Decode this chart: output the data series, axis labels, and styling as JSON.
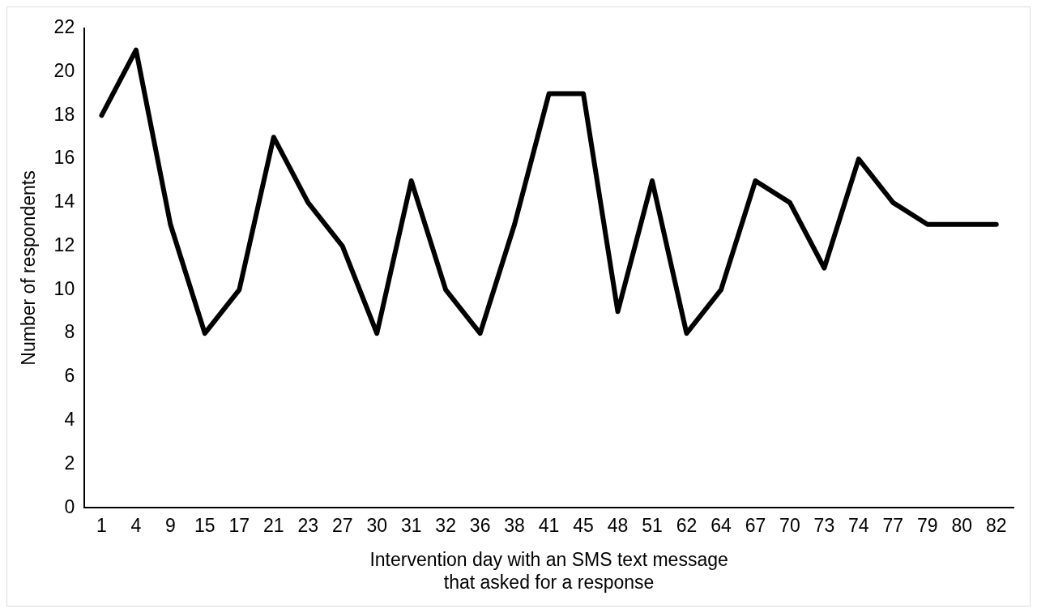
{
  "chart_data": {
    "type": "line",
    "xlabel": "Intervention day with an SMS text message\nthat asked for a response",
    "ylabel": "Number of respondents",
    "categories": [
      "1",
      "4",
      "9",
      "15",
      "17",
      "21",
      "23",
      "27",
      "30",
      "31",
      "32",
      "36",
      "38",
      "41",
      "45",
      "48",
      "51",
      "62",
      "64",
      "67",
      "70",
      "73",
      "74",
      "77",
      "79",
      "80",
      "82"
    ],
    "series": [
      {
        "color": "#000000",
        "values": [
          18,
          21,
          13,
          8,
          10,
          17,
          14,
          12,
          8,
          15,
          10,
          8,
          13,
          19,
          19,
          9,
          15,
          8,
          10,
          15,
          14,
          11,
          16,
          14,
          13,
          13,
          13
        ]
      }
    ],
    "ylim": [
      0,
      22
    ],
    "yticks": [
      0,
      2,
      4,
      6,
      8,
      10,
      12,
      14,
      16,
      18,
      20,
      22
    ],
    "grid": false,
    "legend": false,
    "marker": "none",
    "line_style": "solid"
  }
}
